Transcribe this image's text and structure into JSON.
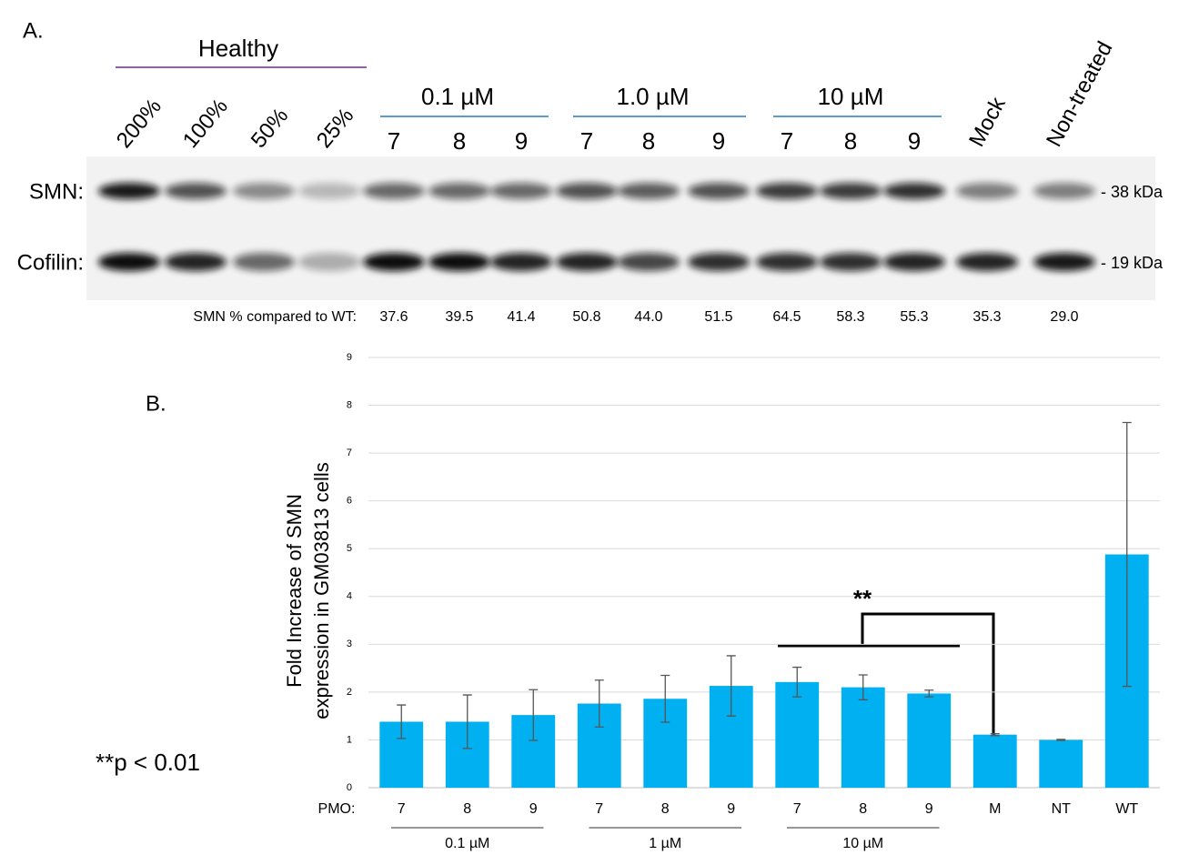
{
  "panel_a": {
    "label": "A.",
    "healthy": "Healthy",
    "healthy_lanes": [
      "200%",
      "100%",
      "50%",
      "25%"
    ],
    "groups": [
      {
        "label": "0.1 µM",
        "lanes": [
          "7",
          "8",
          "9"
        ]
      },
      {
        "label": "1.0 µM",
        "lanes": [
          "7",
          "8",
          "9"
        ]
      },
      {
        "label": "10 µM",
        "lanes": [
          "7",
          "8",
          "9"
        ]
      }
    ],
    "extra_lanes": [
      "Mock",
      "Non-treated"
    ],
    "rows": [
      {
        "label": "SMN:",
        "size": "- 38 kDa"
      },
      {
        "label": "Cofilin:",
        "size": "- 19 kDa"
      }
    ],
    "quant_label": "SMN % compared to WT:",
    "quant": [
      "37.6",
      "39.5",
      "41.4",
      "50.8",
      "44.0",
      "51.5",
      "64.5",
      "58.3",
      "55.3",
      "35.3",
      "29.0"
    ]
  },
  "chart_data": {
    "type": "bar",
    "panel_label": "B.",
    "ylabel": [
      "Fold Increase of SMN",
      "expression in GM03813 cells"
    ],
    "x_label": "PMO:",
    "categories": [
      "7",
      "8",
      "9",
      "7",
      "8",
      "9",
      "7",
      "8",
      "9",
      "M",
      "NT",
      "WT"
    ],
    "groups": [
      "0.1 µM",
      "1 µM",
      "10 µM"
    ],
    "values": [
      1.38,
      1.38,
      1.52,
      1.76,
      1.86,
      2.13,
      2.21,
      2.1,
      1.97,
      1.11,
      1.0,
      4.88
    ],
    "errors": [
      0.35,
      0.56,
      0.53,
      0.49,
      0.49,
      0.63,
      0.31,
      0.26,
      0.07,
      0.02,
      0.01,
      2.76
    ],
    "color": "#00b0f0",
    "ylim": [
      0,
      9
    ],
    "yticks": [
      0,
      1,
      2,
      3,
      4,
      5,
      6,
      7,
      8,
      9
    ],
    "grid": true,
    "annotation": "**",
    "footnote": "**p < 0.01"
  }
}
